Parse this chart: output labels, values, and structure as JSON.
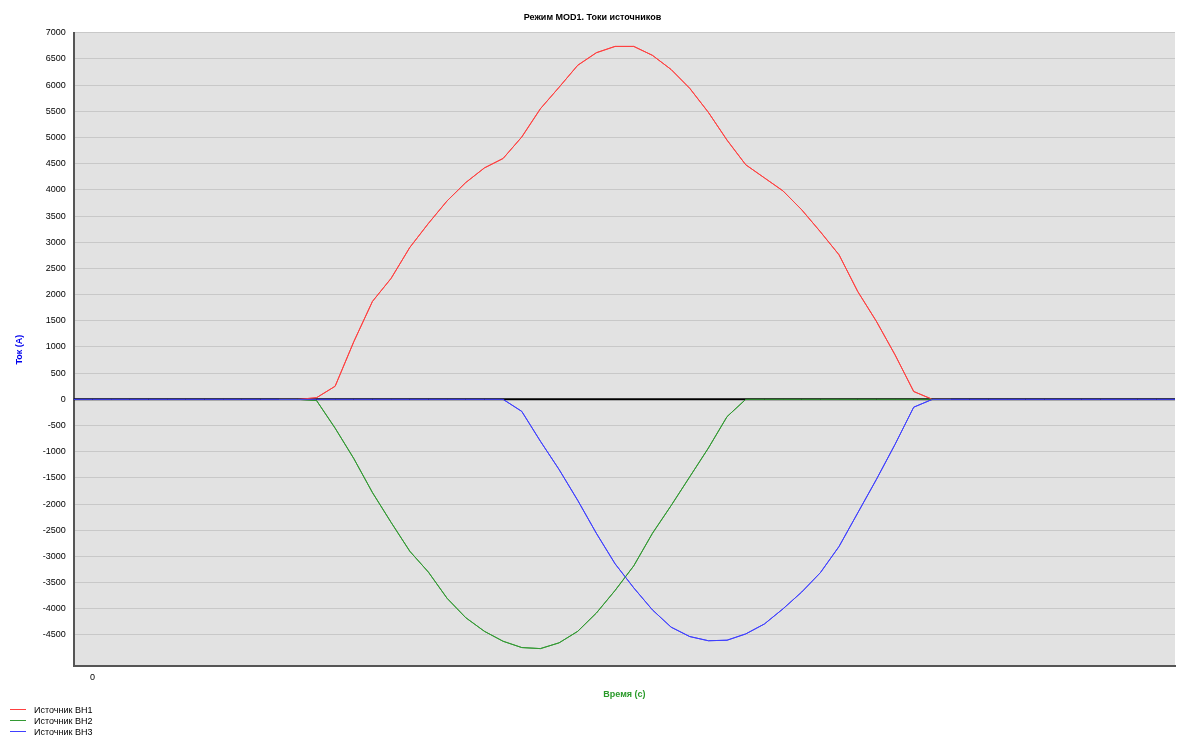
{
  "chart_data": {
    "type": "line",
    "title": "Режим MOD1. Токи источников",
    "xlabel": "Время (с)",
    "ylabel": "Ток (А)",
    "categories": [
      null,
      "0",
      null,
      null,
      null,
      null,
      null,
      null,
      null,
      null,
      null,
      null,
      null,
      null,
      null,
      null,
      null,
      null,
      null,
      null,
      null,
      null,
      null,
      null,
      null,
      null,
      null,
      null,
      null,
      null,
      null,
      null,
      null,
      null,
      null,
      null,
      null,
      null,
      null,
      null,
      null,
      null,
      null,
      null,
      null,
      null,
      null,
      null,
      null,
      null,
      null,
      null,
      null,
      null,
      null,
      null,
      null,
      null,
      null,
      null
    ],
    "series": [
      {
        "name": "Источник ВН1",
        "color": "#ff4040",
        "values": [
          null,
          null,
          null,
          null,
          null,
          null,
          null,
          null,
          null,
          null,
          null,
          0,
          0,
          30,
          250,
          1100,
          1870,
          2310,
          2900,
          3360,
          3790,
          4140,
          4420,
          4600,
          5010,
          5550,
          5960,
          6380,
          6620,
          6740,
          6740,
          6570,
          6300,
          5940,
          5480,
          4950,
          4480,
          4230,
          3980,
          3620,
          3200,
          2760,
          2060,
          1490,
          850,
          150,
          0,
          0,
          null,
          null,
          null,
          null,
          null,
          null,
          null,
          null,
          null,
          null,
          null,
          null
        ]
      },
      {
        "name": "Источник ВН2",
        "color": "#339933",
        "values": [
          null,
          null,
          null,
          null,
          null,
          null,
          null,
          null,
          null,
          null,
          null,
          0,
          0,
          -20,
          -550,
          -1130,
          -1780,
          -2350,
          -2900,
          -3300,
          -3800,
          -4170,
          -4430,
          -4620,
          -4740,
          -4760,
          -4650,
          -4430,
          -4080,
          -3650,
          -3180,
          -2560,
          -2030,
          -1480,
          -930,
          -330,
          0,
          0,
          0,
          0,
          0,
          0,
          0,
          0,
          0,
          0,
          0,
          0,
          null,
          null,
          null,
          null,
          null,
          null,
          null,
          null,
          null,
          null,
          null,
          null
        ]
      },
      {
        "name": "Источник ВН3",
        "color": "#4040ff",
        "values": [
          0,
          0,
          0,
          0,
          0,
          0,
          0,
          0,
          0,
          0,
          0,
          0,
          0,
          0,
          0,
          0,
          0,
          0,
          0,
          0,
          0,
          0,
          0,
          0,
          -230,
          -800,
          -1340,
          -1930,
          -2560,
          -3140,
          -3600,
          -4020,
          -4350,
          -4530,
          -4610,
          -4600,
          -4480,
          -4290,
          -4000,
          -3680,
          -3310,
          -2810,
          -2170,
          -1530,
          -860,
          -150,
          0,
          0,
          0,
          0,
          0,
          0,
          0,
          0,
          0,
          0,
          0,
          0,
          0,
          0
        ]
      }
    ],
    "ylim": [
      -5100,
      7000
    ],
    "yticks": [
      -4500,
      -4000,
      -3500,
      -3000,
      -2500,
      -2000,
      -1500,
      -1000,
      -500,
      0,
      500,
      1000,
      1500,
      2000,
      2500,
      3000,
      3500,
      4000,
      4500,
      5000,
      5500,
      6000,
      6500,
      7000
    ],
    "ref_lines": [
      {
        "axis": "y",
        "value": 0,
        "color": "#000000"
      }
    ],
    "grid": "y",
    "legend": "bottom left",
    "marker": "none",
    "line_style": "solid"
  }
}
